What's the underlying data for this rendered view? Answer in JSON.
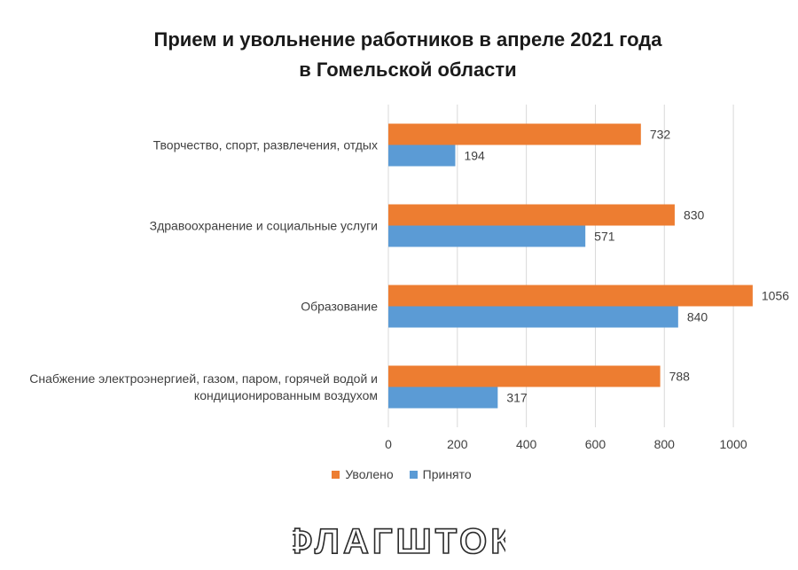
{
  "chart_data": {
    "type": "bar",
    "orientation": "horizontal",
    "title": [
      "Прием и увольнение работников в апреле 2021 года",
      "в Гомельской области"
    ],
    "categories": [
      [
        "Творчество, спорт, развлечения, отдых"
      ],
      [
        "Здравоохранение и социальные услуги"
      ],
      [
        "Образование"
      ],
      [
        "Снабжение электроэнергией, газом, паром, горячей водой и",
        "кондиционированным воздухом"
      ]
    ],
    "series": [
      {
        "name": "Уволено",
        "color": "#ED7D31",
        "values": [
          732,
          830,
          1056,
          788
        ]
      },
      {
        "name": "Принято",
        "color": "#5B9BD5",
        "values": [
          194,
          571,
          840,
          317
        ]
      }
    ],
    "xlim": [
      0,
      1100
    ],
    "xticks": [
      "0",
      "200",
      "400",
      "600",
      "800",
      "1000"
    ],
    "xtick_values": [
      0,
      200,
      400,
      600,
      800,
      1000
    ],
    "grid": true,
    "legend_position": "bottom"
  },
  "watermark": {
    "text": "ФЛАГШТОК",
    "type": "logo"
  }
}
